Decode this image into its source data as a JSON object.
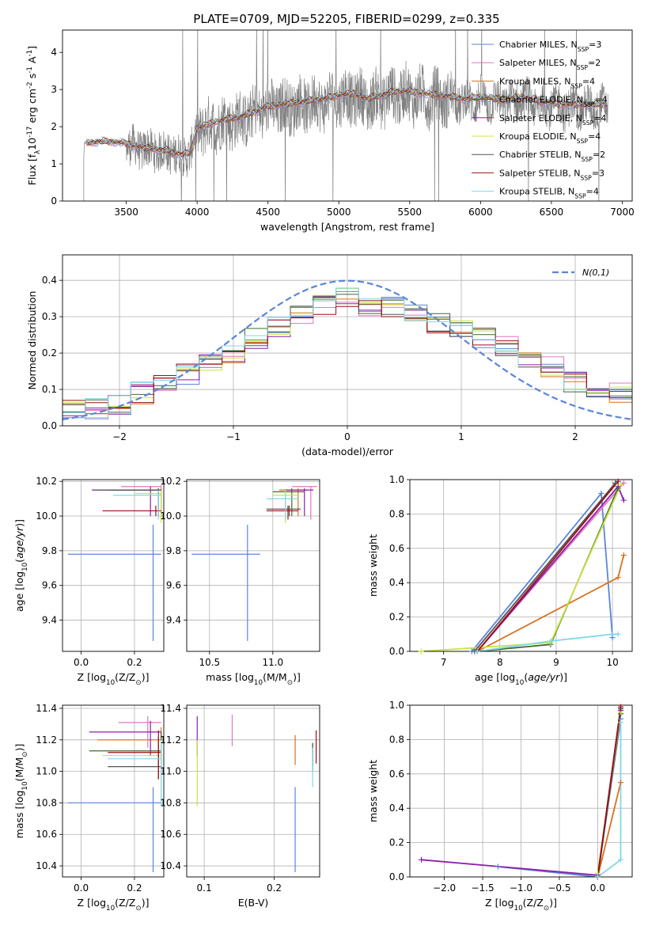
{
  "title": "PLATE=0709, MJD=52205, FIBERID=0299, z=0.335",
  "legend_labels": [
    "Chabrier MILES, N$_{SSP}$=3",
    "Salpeter MILES, N$_{SSP}$=2",
    "Kroupa MILES, N$_{SSP}$=4",
    "Chabrier ELODIE, N$_{SSP}$=4",
    "Salpeter ELODIE, N$_{SSP}$=4",
    "Kroupa ELODIE, N$_{SSP}$=4",
    "Chabrier STELIB, N$_{SSP}$=2",
    "Salpeter STELIB, N$_{SSP}$=3",
    "Kroupa STELIB, N$_{SSP}$=4"
  ],
  "chart_data": [
    {
      "id": "spectrum",
      "type": "line",
      "title": "PLATE=0709, MJD=52205, FIBERID=0299, z=0.335",
      "xlabel": "wavelength [Angstrom, rest frame]",
      "ylabel": "Flux [f$_\\lambda$10$^{-17}$ erg cm$^{-2}$ s$^{-1}$ A$^{-1}$]",
      "xlim": [
        3050,
        7070
      ],
      "ylim": [
        0,
        4.6
      ],
      "xticks": [
        3500,
        4000,
        4500,
        5000,
        5500,
        6000,
        6500,
        7000
      ],
      "yticks": [
        0,
        1,
        2,
        3,
        4
      ],
      "grid": false,
      "legend": "upper right",
      "data_color": "#808080",
      "continuum": {
        "x": [
          3200,
          3300,
          3400,
          3500,
          3600,
          3700,
          3800,
          3850,
          3900,
          3950,
          4000,
          4100,
          4200,
          4300,
          4400,
          4500,
          4600,
          4700,
          4800,
          4900,
          5000,
          5100,
          5200,
          5300,
          5400,
          5500,
          5600,
          5700,
          5800,
          5900,
          6000,
          6100,
          6200,
          6300,
          6400,
          6500,
          6600,
          6700,
          6800,
          6900
        ],
        "y": [
          1.55,
          1.6,
          1.6,
          1.55,
          1.45,
          1.4,
          1.35,
          1.3,
          1.25,
          1.3,
          1.95,
          2.1,
          2.2,
          2.25,
          2.4,
          2.55,
          2.6,
          2.65,
          2.7,
          2.75,
          2.85,
          2.9,
          2.75,
          2.85,
          2.95,
          2.95,
          2.9,
          2.85,
          2.8,
          2.75,
          2.8,
          2.75,
          2.75,
          2.8,
          2.7,
          2.65,
          2.6,
          2.6,
          2.6,
          2.6
        ]
      }
    },
    {
      "id": "residuals",
      "type": "line",
      "xlabel": "(data-model)/error",
      "ylabel": "Normed distribution",
      "xlim": [
        -2.5,
        2.5
      ],
      "ylim": [
        0,
        0.47
      ],
      "xticks": [
        -2,
        -1,
        0,
        1,
        2
      ],
      "yticks": [
        0,
        0.1,
        0.2,
        0.3,
        0.4
      ],
      "grid": true,
      "legend": "upper right",
      "gaussian_label": "$\\mathcal{N}(0,1)$",
      "gaussian_color": "#5b86d6",
      "histogram_centers": [
        -2.4,
        -2.2,
        -2.0,
        -1.8,
        -1.6,
        -1.4,
        -1.2,
        -1.0,
        -0.8,
        -0.6,
        -0.4,
        -0.2,
        0.0,
        0.2,
        0.4,
        0.6,
        0.8,
        1.0,
        1.2,
        1.4,
        1.6,
        1.8,
        2.0,
        2.2,
        2.4
      ],
      "histogram_base": [
        0.04,
        0.045,
        0.06,
        0.09,
        0.12,
        0.14,
        0.17,
        0.2,
        0.24,
        0.27,
        0.3,
        0.33,
        0.35,
        0.33,
        0.33,
        0.31,
        0.28,
        0.27,
        0.24,
        0.22,
        0.19,
        0.16,
        0.12,
        0.1,
        0.09
      ]
    },
    {
      "id": "age-vs-z",
      "type": "scatter",
      "xlabel": "Z [log$_{10}$(Z/Z$_\\odot$)]",
      "ylabel": "age  [log$_{10}$($age/yr$)]",
      "xlim": [
        -0.07,
        0.31
      ],
      "ylim": [
        9.22,
        10.21
      ],
      "xticks": [
        0.0,
        0.2
      ],
      "yticks": [
        9.4,
        9.6,
        9.8,
        10.0,
        10.2
      ],
      "grid": true,
      "errorbars": [
        {
          "model": 0,
          "x": 0.27,
          "xlo": -0.05,
          "xhi": 0.3,
          "y": 9.78,
          "ylo": 9.28,
          "yhi": 9.95
        },
        {
          "model": 1,
          "x": 0.3,
          "xlo": 0.15,
          "xhi": 0.3,
          "y": 10.17,
          "ylo": 10.0,
          "yhi": 10.18
        },
        {
          "model": 2,
          "x": 0.3,
          "xlo": 0.1,
          "xhi": 0.3,
          "y": 10.15,
          "ylo": 9.98,
          "yhi": 10.16
        },
        {
          "model": 3,
          "x": 0.29,
          "xlo": 0.1,
          "xhi": 0.3,
          "y": 10.15,
          "ylo": 10.0,
          "yhi": 10.16
        },
        {
          "model": 4,
          "x": 0.26,
          "xlo": 0.04,
          "xhi": 0.3,
          "y": 10.15,
          "ylo": 10.0,
          "yhi": 10.17
        },
        {
          "model": 5,
          "x": 0.3,
          "xlo": 0.2,
          "xhi": 0.3,
          "y": 10.13,
          "ylo": 9.96,
          "yhi": 10.15
        },
        {
          "model": 6,
          "x": 0.29,
          "xlo": 0.05,
          "xhi": 0.3,
          "y": 10.15,
          "ylo": 10.0,
          "yhi": 10.16
        },
        {
          "model": 7,
          "x": 0.28,
          "xlo": 0.08,
          "xhi": 0.3,
          "y": 10.03,
          "ylo": 10.0,
          "yhi": 10.06
        },
        {
          "model": 8,
          "x": 0.29,
          "xlo": 0.12,
          "xhi": 0.3,
          "y": 10.12,
          "ylo": 9.98,
          "yhi": 10.15
        }
      ]
    },
    {
      "id": "age-vs-mass",
      "type": "scatter",
      "xlabel": "mass [log$_{10}$(M/M$_\\odot$)]",
      "ylabel": "",
      "xlim": [
        10.32,
        11.37
      ],
      "ylim": [
        9.22,
        10.21
      ],
      "xticks": [
        10.5,
        11.0
      ],
      "yticks": [
        9.4,
        9.6,
        9.8,
        10.0,
        10.2
      ],
      "grid": true,
      "errorbars": [
        {
          "model": 0,
          "x": 10.8,
          "xlo": 10.36,
          "xhi": 10.9,
          "y": 9.78,
          "ylo": 9.28,
          "yhi": 9.95
        },
        {
          "model": 1,
          "x": 11.3,
          "xlo": 11.15,
          "xhi": 11.35,
          "y": 10.17,
          "ylo": 9.98,
          "yhi": 10.17
        },
        {
          "model": 2,
          "x": 11.2,
          "xlo": 11.05,
          "xhi": 11.28,
          "y": 10.15,
          "ylo": 10.0,
          "yhi": 10.16
        },
        {
          "model": 3,
          "x": 11.15,
          "xlo": 11.0,
          "xhi": 11.25,
          "y": 10.14,
          "ylo": 10.0,
          "yhi": 10.16
        },
        {
          "model": 4,
          "x": 11.25,
          "xlo": 11.1,
          "xhi": 11.32,
          "y": 10.15,
          "ylo": 10.0,
          "yhi": 10.16
        },
        {
          "model": 5,
          "x": 11.1,
          "xlo": 11.0,
          "xhi": 11.2,
          "y": 10.12,
          "ylo": 9.96,
          "yhi": 10.15
        },
        {
          "model": 6,
          "x": 11.13,
          "xlo": 10.95,
          "xhi": 11.22,
          "y": 10.04,
          "ylo": 10.0,
          "yhi": 10.06
        },
        {
          "model": 7,
          "x": 11.12,
          "xlo": 10.95,
          "xhi": 11.2,
          "y": 10.03,
          "ylo": 9.98,
          "yhi": 10.06
        },
        {
          "model": 8,
          "x": 11.1,
          "xlo": 10.95,
          "xhi": 11.2,
          "y": 10.1,
          "ylo": 9.98,
          "yhi": 10.13
        }
      ]
    },
    {
      "id": "weight-vs-age",
      "type": "line",
      "xlabel": "age  [log$_{10}$($age/yr$)]",
      "ylabel": "mass weight",
      "xlim": [
        6.4,
        10.35
      ],
      "ylim": [
        0,
        1.0
      ],
      "xticks": [
        7,
        8,
        9,
        10
      ],
      "yticks": [
        0.0,
        0.2,
        0.4,
        0.6,
        0.8,
        1.0
      ],
      "grid": true,
      "series": [
        {
          "model": 0,
          "points": [
            [
              7.5,
              0.0
            ],
            [
              9.8,
              0.92
            ],
            [
              10.0,
              0.08
            ]
          ]
        },
        {
          "model": 1,
          "points": [
            [
              7.6,
              0.0
            ],
            [
              10.2,
              0.98
            ]
          ]
        },
        {
          "model": 2,
          "points": [
            [
              7.6,
              0.0
            ],
            [
              10.1,
              0.43
            ],
            [
              10.2,
              0.56
            ]
          ]
        },
        {
          "model": 3,
          "points": [
            [
              7.6,
              0.0
            ],
            [
              8.9,
              0.04
            ],
            [
              10.1,
              0.95
            ]
          ]
        },
        {
          "model": 4,
          "points": [
            [
              7.6,
              0.0
            ],
            [
              10.1,
              0.96
            ],
            [
              10.2,
              0.88
            ]
          ]
        },
        {
          "model": 5,
          "points": [
            [
              6.6,
              0.0
            ],
            [
              8.9,
              0.05
            ],
            [
              10.15,
              0.97
            ]
          ]
        },
        {
          "model": 6,
          "points": [
            [
              7.55,
              0.0
            ],
            [
              10.05,
              0.98
            ]
          ]
        },
        {
          "model": 7,
          "points": [
            [
              7.6,
              0.0
            ],
            [
              10.1,
              0.99
            ]
          ]
        },
        {
          "model": 8,
          "points": [
            [
              7.6,
              0.0
            ],
            [
              8.9,
              0.06
            ],
            [
              10.0,
              0.1
            ],
            [
              10.1,
              0.1
            ]
          ]
        }
      ]
    },
    {
      "id": "mass-vs-z",
      "type": "scatter",
      "xlabel": "Z [log$_{10}$(Z/Z$_\\odot$)]",
      "ylabel": "mass [log$_{10}$(M/M$_\\odot$)]",
      "xlim": [
        -0.07,
        0.31
      ],
      "ylim": [
        10.33,
        11.42
      ],
      "xticks": [
        0.0,
        0.2
      ],
      "yticks": [
        10.4,
        10.6,
        10.8,
        11.0,
        11.2,
        11.4
      ],
      "grid": true,
      "errorbars": [
        {
          "model": 0,
          "x": 0.27,
          "xlo": -0.05,
          "xhi": 0.3,
          "y": 10.8,
          "ylo": 10.36,
          "yhi": 10.9
        },
        {
          "model": 1,
          "x": 0.25,
          "xlo": 0.14,
          "xhi": 0.3,
          "y": 11.31,
          "ylo": 11.15,
          "yhi": 11.35
        },
        {
          "model": 2,
          "x": 0.3,
          "xlo": 0.06,
          "xhi": 0.3,
          "y": 11.2,
          "ylo": 11.05,
          "yhi": 11.28
        },
        {
          "model": 3,
          "x": 0.3,
          "xlo": 0.03,
          "xhi": 0.3,
          "y": 11.13,
          "ylo": 11.0,
          "yhi": 11.25
        },
        {
          "model": 4,
          "x": 0.26,
          "xlo": 0.03,
          "xhi": 0.3,
          "y": 11.25,
          "ylo": 11.1,
          "yhi": 11.32
        },
        {
          "model": 5,
          "x": 0.3,
          "xlo": 0.08,
          "xhi": 0.3,
          "y": 11.1,
          "ylo": 10.78,
          "yhi": 11.2
        },
        {
          "model": 6,
          "x": 0.29,
          "xlo": 0.1,
          "xhi": 0.3,
          "y": 11.03,
          "ylo": 10.95,
          "yhi": 11.22
        },
        {
          "model": 7,
          "x": 0.29,
          "xlo": 0.1,
          "xhi": 0.3,
          "y": 11.12,
          "ylo": 10.95,
          "yhi": 11.26
        },
        {
          "model": 8,
          "x": 0.3,
          "xlo": 0.1,
          "xhi": 0.3,
          "y": 11.08,
          "ylo": 10.78,
          "yhi": 11.2
        }
      ]
    },
    {
      "id": "mass-vs-ebv",
      "type": "scatter",
      "xlabel": "E(B-V)",
      "ylabel": "",
      "xlim": [
        0.075,
        0.265
      ],
      "ylim": [
        10.33,
        11.42
      ],
      "xticks": [
        0.1,
        0.2
      ],
      "yticks": [
        10.4,
        10.6,
        10.8,
        11.0,
        11.2,
        11.4
      ],
      "grid": true,
      "errorbars": [
        {
          "model": 0,
          "x": 0.23,
          "y": 10.8,
          "ylo": 10.36,
          "yhi": 10.9
        },
        {
          "model": 1,
          "x": 0.14,
          "y": 11.3,
          "ylo": 11.16,
          "yhi": 11.36
        },
        {
          "model": 2,
          "x": 0.23,
          "y": 11.13,
          "ylo": 11.04,
          "yhi": 11.23
        },
        {
          "model": 3,
          "x": 0.255,
          "y": 11.1,
          "ylo": 11.0,
          "yhi": 11.18
        },
        {
          "model": 4,
          "x": 0.09,
          "y": 11.25,
          "ylo": 11.1,
          "yhi": 11.35
        },
        {
          "model": 5,
          "x": 0.09,
          "y": 11.0,
          "ylo": 10.78,
          "yhi": 11.2
        },
        {
          "model": 6,
          "x": 0.255,
          "y": 11.1,
          "ylo": 11.03,
          "yhi": 11.18
        },
        {
          "model": 7,
          "x": 0.26,
          "y": 11.15,
          "ylo": 11.05,
          "yhi": 11.26
        },
        {
          "model": 8,
          "x": 0.255,
          "y": 11.0,
          "ylo": 10.9,
          "yhi": 11.15
        }
      ]
    },
    {
      "id": "weight-vs-z",
      "type": "line",
      "xlabel": "Z [log$_{10}$(Z/Z$_\\odot$)]",
      "ylabel": "mass weight",
      "xlim": [
        -2.45,
        0.45
      ],
      "ylim": [
        0,
        1.0
      ],
      "xticks": [
        -2.0,
        -1.5,
        -1.0,
        -0.5,
        0.0
      ],
      "yticks": [
        0.0,
        0.2,
        0.4,
        0.6,
        0.8,
        1.0
      ],
      "grid": true,
      "series": [
        {
          "model": 0,
          "points": [
            [
              -1.3,
              0.06
            ],
            [
              0.0,
              0.0
            ],
            [
              0.3,
              0.92
            ]
          ]
        },
        {
          "model": 1,
          "points": [
            [
              0.0,
              0.0
            ],
            [
              0.3,
              0.98
            ]
          ]
        },
        {
          "model": 2,
          "points": [
            [
              0.0,
              0.0
            ],
            [
              0.3,
              0.55
            ]
          ]
        },
        {
          "model": 3,
          "points": [
            [
              0.0,
              0.0
            ],
            [
              0.3,
              0.95
            ]
          ]
        },
        {
          "model": 4,
          "points": [
            [
              -2.3,
              0.1
            ],
            [
              0.0,
              0.01
            ],
            [
              0.3,
              0.97
            ]
          ]
        },
        {
          "model": 5,
          "points": [
            [
              0.0,
              0.02
            ],
            [
              0.3,
              0.96
            ]
          ]
        },
        {
          "model": 6,
          "points": [
            [
              0.0,
              0.0
            ],
            [
              0.3,
              0.98
            ]
          ]
        },
        {
          "model": 7,
          "points": [
            [
              0.0,
              0.0
            ],
            [
              0.3,
              0.99
            ]
          ]
        },
        {
          "model": 8,
          "points": [
            [
              0.0,
              0.0
            ],
            [
              0.3,
              0.1
            ],
            [
              0.3,
              0.9
            ]
          ]
        }
      ]
    }
  ],
  "model_colors": [
    "#5b86d6",
    "#e377c2",
    "#d8711f",
    "#3d6b2a",
    "#8b1fa9",
    "#c9e542",
    "#555555",
    "#9b0f14",
    "#7fd8e8"
  ]
}
